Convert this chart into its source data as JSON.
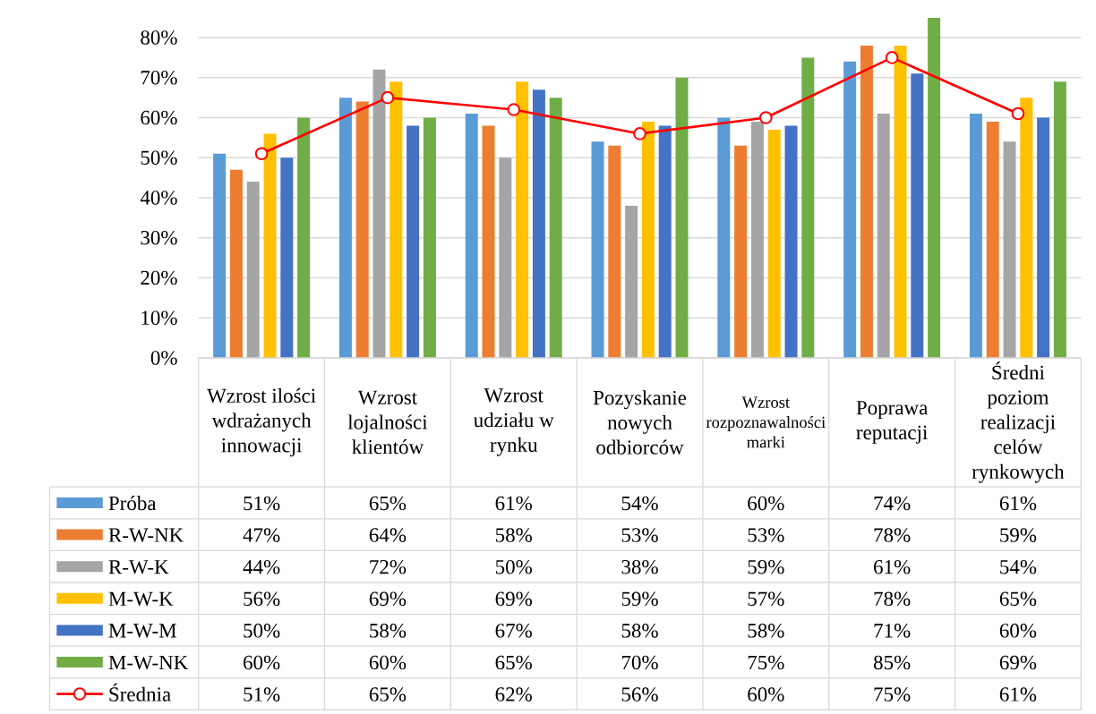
{
  "chart_data": {
    "type": "bar",
    "categories": [
      "Wzrost ilości wdrażanych innowacji",
      "Wzrost lojalności klientów",
      "Wzrost udziału w rynku",
      "Pozyskanie nowych odbiorców",
      "Wzrost rozpoznawalności marki",
      "Poprawa reputacji",
      "Średni poziom realizacji celów rynkowych"
    ],
    "series": [
      {
        "name": "Próba",
        "color": "#5b9bd5",
        "values": [
          51,
          65,
          61,
          54,
          60,
          74,
          61
        ],
        "value_labels": [
          "51%",
          "65%",
          "61%",
          "54%",
          "60%",
          "74%",
          "61%"
        ]
      },
      {
        "name": "R-W-NK",
        "color": "#ed7d31",
        "values": [
          47,
          64,
          58,
          53,
          53,
          78,
          59
        ],
        "value_labels": [
          "47%",
          "64%",
          "58%",
          "53%",
          "53%",
          "78%",
          "59%"
        ]
      },
      {
        "name": "R-W-K",
        "color": "#a5a5a5",
        "values": [
          44,
          72,
          50,
          38,
          59,
          61,
          54
        ],
        "value_labels": [
          "44%",
          "72%",
          "50%",
          "38%",
          "59%",
          "61%",
          "54%"
        ]
      },
      {
        "name": "M-W-K",
        "color": "#ffc000",
        "values": [
          56,
          69,
          69,
          59,
          57,
          78,
          65
        ],
        "value_labels": [
          "56%",
          "69%",
          "69%",
          "59%",
          "57%",
          "78%",
          "65%"
        ]
      },
      {
        "name": "M-W-M",
        "color": "#4472c4",
        "values": [
          50,
          58,
          67,
          58,
          58,
          71,
          60
        ],
        "value_labels": [
          "50%",
          "58%",
          "67%",
          "58%",
          "58%",
          "71%",
          "60%"
        ]
      },
      {
        "name": "M-W-NK",
        "color": "#70ad47",
        "values": [
          60,
          60,
          65,
          70,
          75,
          85,
          69
        ],
        "value_labels": [
          "60%",
          "60%",
          "65%",
          "70%",
          "75%",
          "85%",
          "69%"
        ]
      },
      {
        "name": "Średnia",
        "type": "line",
        "color": "#ff0000",
        "marker": "circle",
        "values": [
          51,
          65,
          62,
          56,
          60,
          75,
          61
        ],
        "value_labels": [
          "51%",
          "65%",
          "62%",
          "56%",
          "60%",
          "75%",
          "61%"
        ]
      }
    ],
    "ylim": [
      0,
      85
    ],
    "yticks": [
      {
        "value": 0,
        "label": "0%"
      },
      {
        "value": 10,
        "label": "10%"
      },
      {
        "value": 20,
        "label": "20%"
      },
      {
        "value": 30,
        "label": "30%"
      },
      {
        "value": 40,
        "label": "40%"
      },
      {
        "value": 50,
        "label": "50%"
      },
      {
        "value": 60,
        "label": "60%"
      },
      {
        "value": 70,
        "label": "70%"
      },
      {
        "value": 80,
        "label": "80%"
      }
    ],
    "grid": "y",
    "legend": "bottom"
  }
}
